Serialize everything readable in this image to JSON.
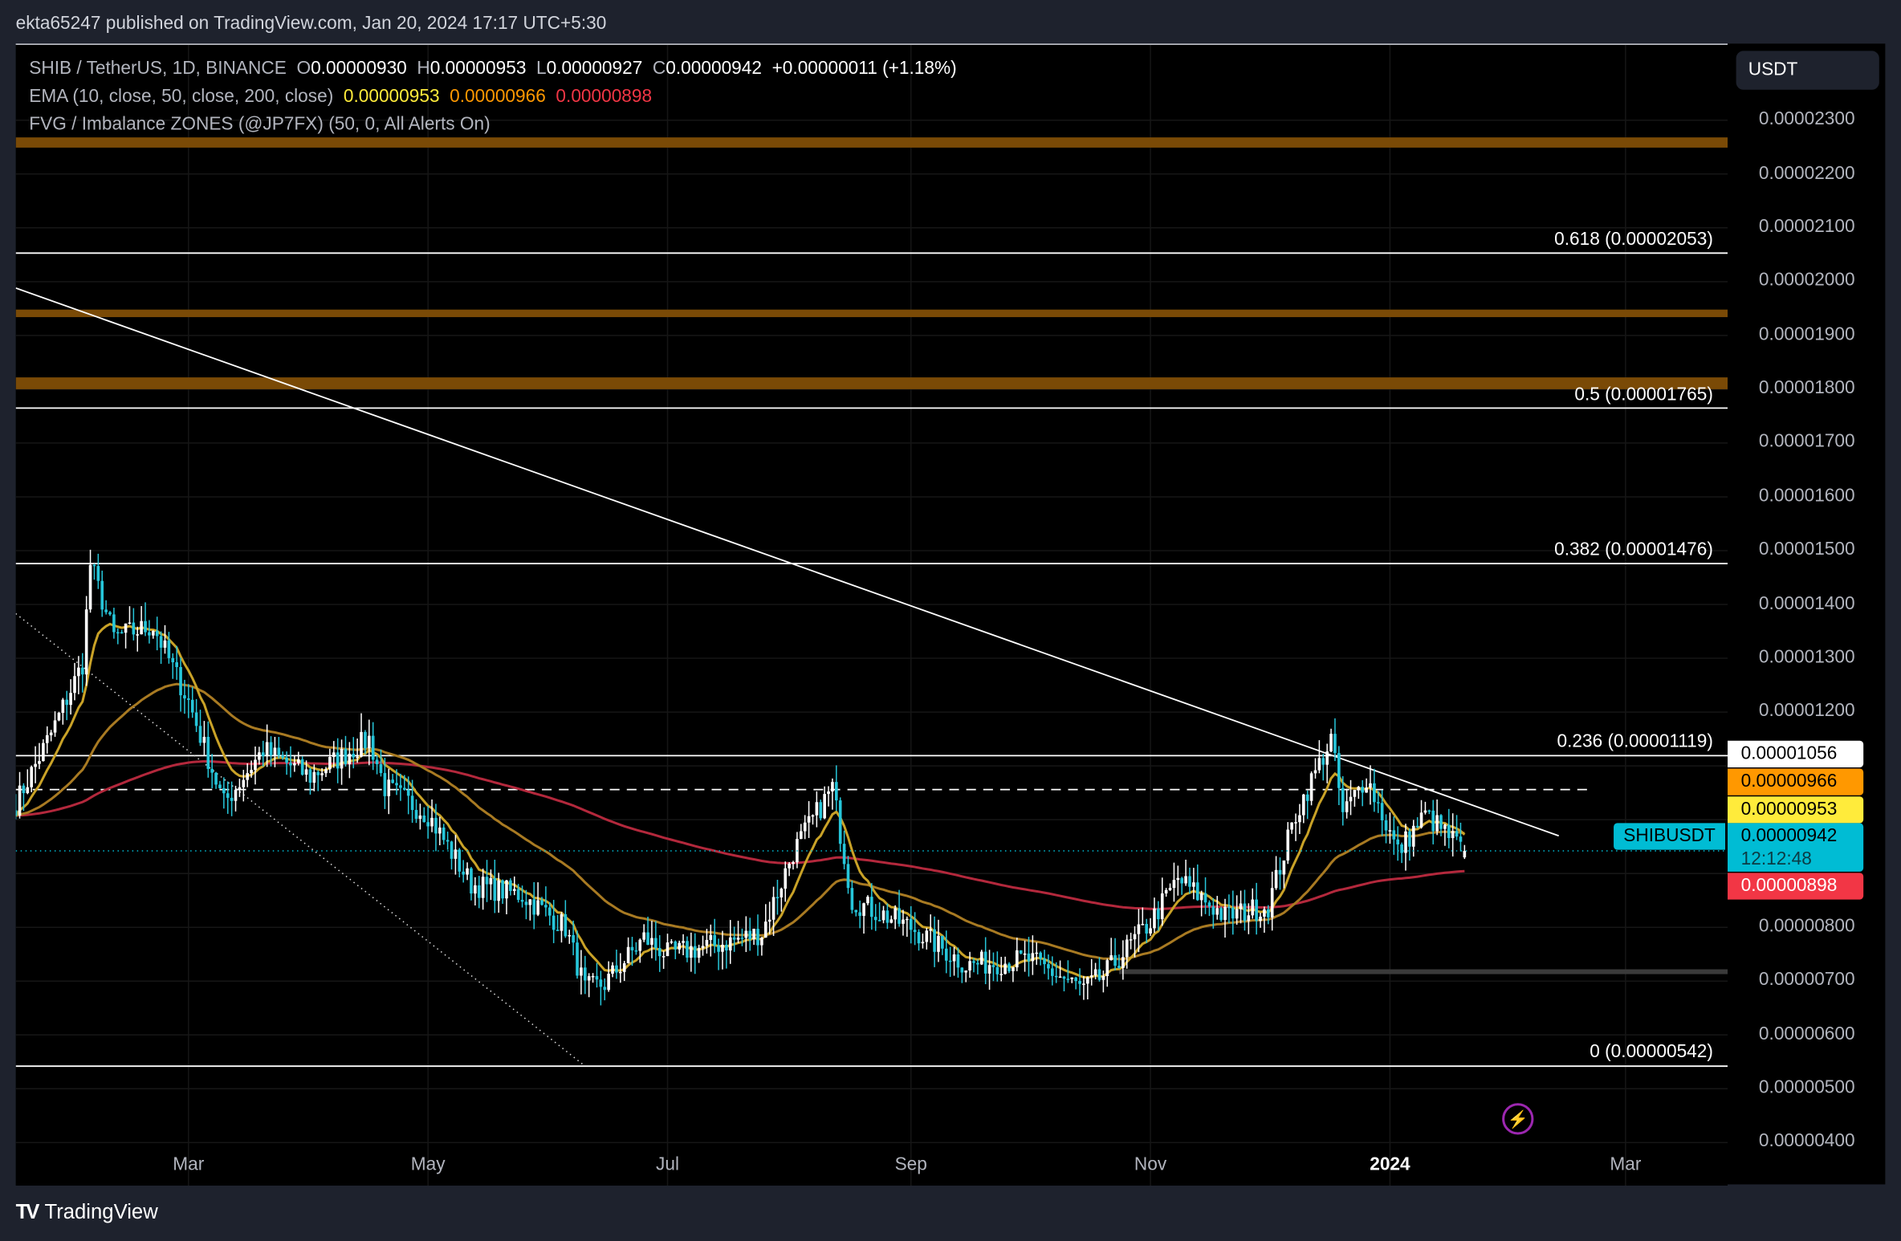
{
  "header": {
    "published": "ekta65247 published on TradingView.com, Jan 20, 2024 17:17 UTC+5:30"
  },
  "legend": {
    "symbol": "SHIB / TetherUS, 1D, BINANCE",
    "o_label": "O",
    "o": "0.00000930",
    "h_label": "H",
    "h": "0.00000953",
    "l_label": "L",
    "l": "0.00000927",
    "c_label": "C",
    "c": "0.00000942",
    "change": "+0.00000011 (+1.18%)",
    "ema_label": "EMA (10, close, 50, close, 200, close)",
    "ema10": "0.00000953",
    "ema50": "0.00000966",
    "ema200": "0.00000898",
    "fvg_label": "FVG / Imbalance ZONES (@JP7FX) (50, 0, All Alerts On)"
  },
  "currency_button": "USDT",
  "price_labels": {
    "level": "0.00001056",
    "ema50": "0.00000966",
    "ema10": "0.00000953",
    "last": "0.00000942",
    "countdown": "12:12:48",
    "ema200": "0.00000898",
    "symbol": "SHIBUSDT"
  },
  "colors": {
    "up": "#ffffff",
    "down": "#26c6da",
    "ema10": "#c9a227",
    "ema50": "#a87a22",
    "ema200": "#b3283c",
    "fvg": "#7a4a06",
    "last": "#00bcd4"
  },
  "footer": {
    "brand": "TradingView"
  },
  "chart_data": {
    "type": "candlestick",
    "title": "SHIB / TetherUS, 1D, BINANCE",
    "scale": "1e-6",
    "ylim": [
      3.2,
      24.4
    ],
    "xlim": [
      "2023-01-16",
      "2024-03-27"
    ],
    "y_ticks": [
      {
        "v": 23,
        "label": "0.00002300"
      },
      {
        "v": 22,
        "label": "0.00002200"
      },
      {
        "v": 21,
        "label": "0.00002100"
      },
      {
        "v": 20,
        "label": "0.00002000"
      },
      {
        "v": 19,
        "label": "0.00001900"
      },
      {
        "v": 18,
        "label": "0.00001800"
      },
      {
        "v": 17,
        "label": "0.00001700"
      },
      {
        "v": 16,
        "label": "0.00001600"
      },
      {
        "v": 15,
        "label": "0.00001500"
      },
      {
        "v": 14,
        "label": "0.00001400"
      },
      {
        "v": 13,
        "label": "0.00001300"
      },
      {
        "v": 12,
        "label": "0.00001200"
      },
      {
        "v": 8,
        "label": "0.00000800"
      },
      {
        "v": 7,
        "label": "0.00000700"
      },
      {
        "v": 6,
        "label": "0.00000600"
      },
      {
        "v": 5,
        "label": "0.00000500"
      },
      {
        "v": 4,
        "label": "0.00000400"
      }
    ],
    "x_ticks": [
      {
        "date": "2023-03-01",
        "label": "Mar"
      },
      {
        "date": "2023-05-01",
        "label": "May"
      },
      {
        "date": "2023-07-01",
        "label": "Jul"
      },
      {
        "date": "2023-09-01",
        "label": "Sep"
      },
      {
        "date": "2023-11-01",
        "label": "Nov"
      },
      {
        "date": "2024-01-01",
        "label": "2024",
        "bold": true
      },
      {
        "date": "2024-03-01",
        "label": "Mar"
      }
    ],
    "fib_levels": [
      {
        "v": 20.53,
        "label": "0.618 (0.00002053)"
      },
      {
        "v": 17.65,
        "label": "0.5 (0.00001765)"
      },
      {
        "v": 14.76,
        "label": "0.382 (0.00001476)"
      },
      {
        "v": 11.19,
        "label": "0.236 (0.00001119)"
      },
      {
        "v": 5.42,
        "label": "0 (0.00000542)"
      }
    ],
    "horizontal_dashed": 10.56,
    "fvg_zones": [
      {
        "from": 22.49,
        "to": 22.68,
        "start": "2023-01-16"
      },
      {
        "from": 19.34,
        "to": 19.48,
        "start": "2023-01-16"
      },
      {
        "from": 18.0,
        "to": 18.22,
        "start": "2023-01-16"
      }
    ],
    "gray_zone": {
      "from": 7.13,
      "to": 7.22,
      "start": "2023-10-24"
    },
    "trendline": {
      "p1": [
        "2023-01-16",
        19.88
      ],
      "p2": [
        "2024-02-13",
        9.7
      ]
    },
    "dotted_line": {
      "p1": [
        "2023-01-16",
        13.83
      ],
      "p2": [
        "2023-06-10",
        5.42
      ]
    },
    "closes": [
      [
        "2023-01-16",
        10.3
      ],
      [
        "2023-01-25",
        11.6
      ],
      [
        "2023-02-02",
        12.9
      ],
      [
        "2023-02-04",
        14.75
      ],
      [
        "2023-02-10",
        13.4
      ],
      [
        "2023-02-20",
        13.6
      ],
      [
        "2023-03-01",
        12.2
      ],
      [
        "2023-03-10",
        10.3
      ],
      [
        "2023-03-20",
        11.3
      ],
      [
        "2023-04-01",
        10.8
      ],
      [
        "2023-04-16",
        11.5
      ],
      [
        "2023-04-20",
        10.6
      ],
      [
        "2023-05-01",
        10.1
      ],
      [
        "2023-05-12",
        8.8
      ],
      [
        "2023-05-25",
        8.6
      ],
      [
        "2023-06-05",
        8.0
      ],
      [
        "2023-06-10",
        6.85
      ],
      [
        "2023-06-15",
        6.95
      ],
      [
        "2023-06-25",
        7.8
      ],
      [
        "2023-07-01",
        7.5
      ],
      [
        "2023-07-15",
        7.7
      ],
      [
        "2023-07-25",
        7.9
      ],
      [
        "2023-08-02",
        9.4
      ],
      [
        "2023-08-12",
        10.6
      ],
      [
        "2023-08-17",
        8.5
      ],
      [
        "2023-09-01",
        8.0
      ],
      [
        "2023-09-15",
        7.3
      ],
      [
        "2023-10-01",
        7.4
      ],
      [
        "2023-10-15",
        6.85
      ],
      [
        "2023-10-20",
        7.1
      ],
      [
        "2023-11-01",
        8.1
      ],
      [
        "2023-11-08",
        8.9
      ],
      [
        "2023-11-20",
        8.2
      ],
      [
        "2023-12-01",
        8.4
      ],
      [
        "2023-12-08",
        10.1
      ],
      [
        "2023-12-17",
        11.5
      ],
      [
        "2023-12-20",
        10.1
      ],
      [
        "2023-12-26",
        10.8
      ],
      [
        "2024-01-03",
        9.4
      ],
      [
        "2024-01-10",
        10.1
      ],
      [
        "2024-01-20",
        9.42
      ]
    ],
    "last_candle": {
      "open": 9.3,
      "high": 9.53,
      "low": 9.27,
      "close": 9.42
    }
  }
}
